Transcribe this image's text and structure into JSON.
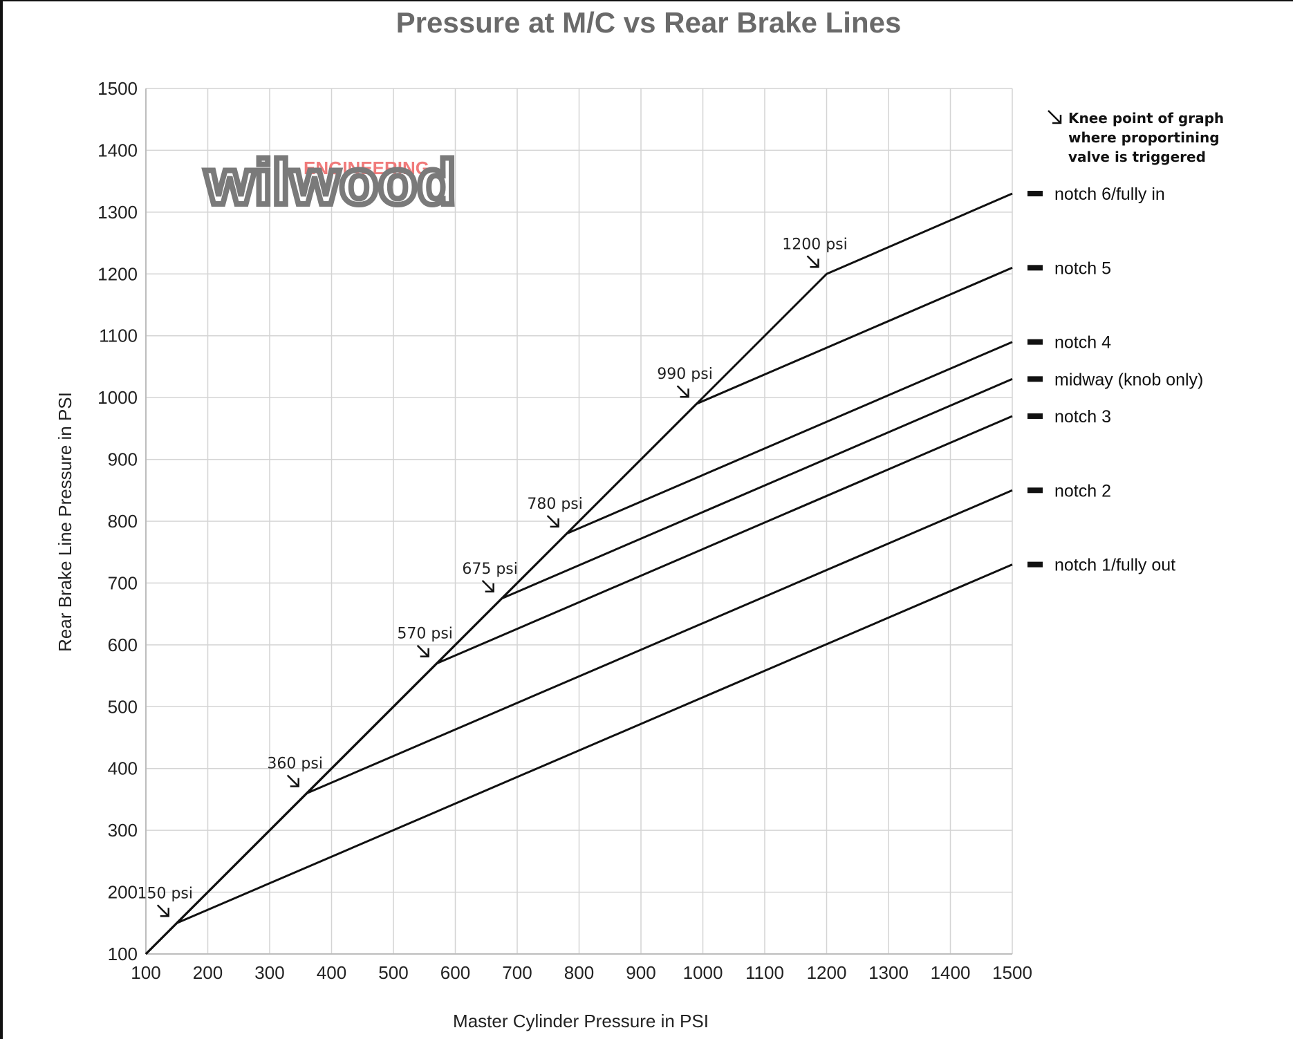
{
  "chart_data": {
    "type": "line",
    "title": "Pressure at M/C vs Rear Brake Lines",
    "xlabel": "Master Cylinder Pressure in PSI",
    "ylabel": "Rear Brake Line Pressure in PSI",
    "xlim": [
      100,
      1500
    ],
    "ylim": [
      100,
      1500
    ],
    "xticks": [
      100,
      200,
      300,
      400,
      500,
      600,
      700,
      800,
      900,
      1000,
      1100,
      1200,
      1300,
      1400,
      1500
    ],
    "yticks": [
      100,
      200,
      300,
      400,
      500,
      600,
      700,
      800,
      900,
      1000,
      1100,
      1200,
      1300,
      1400,
      1500
    ],
    "grid": true,
    "legend_position": "right",
    "line_color": "#111111",
    "series": [
      {
        "name": "notch 6/fully in",
        "points": [
          [
            100,
            100
          ],
          [
            1200,
            1200
          ],
          [
            1500,
            1330
          ]
        ]
      },
      {
        "name": "notch 5",
        "points": [
          [
            100,
            100
          ],
          [
            990,
            990
          ],
          [
            1500,
            1210
          ]
        ]
      },
      {
        "name": "notch 4",
        "points": [
          [
            100,
            100
          ],
          [
            780,
            780
          ],
          [
            1500,
            1090
          ]
        ]
      },
      {
        "name": "midway (knob only)",
        "points": [
          [
            100,
            100
          ],
          [
            675,
            675
          ],
          [
            1500,
            1030
          ]
        ]
      },
      {
        "name": "notch 3",
        "points": [
          [
            100,
            100
          ],
          [
            570,
            570
          ],
          [
            1500,
            970
          ]
        ]
      },
      {
        "name": "notch 2",
        "points": [
          [
            100,
            100
          ],
          [
            360,
            360
          ],
          [
            1500,
            850
          ]
        ]
      },
      {
        "name": "notch 1/fully out",
        "points": [
          [
            100,
            100
          ],
          [
            150,
            150
          ],
          [
            1500,
            730
          ]
        ]
      }
    ],
    "annotations": [
      {
        "text": "150 psi",
        "x": 150,
        "y": 150
      },
      {
        "text": "360 psi",
        "x": 360,
        "y": 360
      },
      {
        "text": "570 psi",
        "x": 570,
        "y": 570
      },
      {
        "text": "675 psi",
        "x": 675,
        "y": 675
      },
      {
        "text": "780 psi",
        "x": 780,
        "y": 780
      },
      {
        "text": "990 psi",
        "x": 990,
        "y": 990
      },
      {
        "text": "1200 psi",
        "x": 1200,
        "y": 1200
      }
    ],
    "legend_note": [
      "Knee point of graph",
      "where proportining",
      "valve is triggered"
    ]
  },
  "logo": {
    "brand": "wilwood",
    "sub": "ENGINEERING",
    "brand_color": "#7a7a7a",
    "sub_color": "#f07a7a"
  }
}
